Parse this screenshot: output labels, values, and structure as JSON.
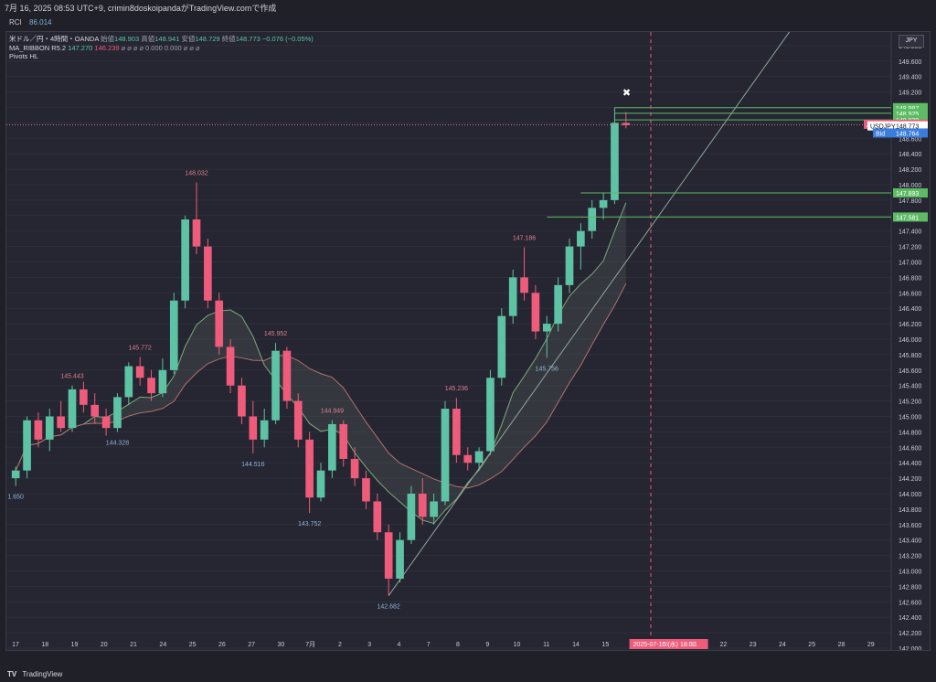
{
  "header": {
    "timestamp": "7月 16, 2025 08:53 UTC+9",
    "author": "crimin8doskoipandaがTradingView.comで作成"
  },
  "indicator_top": {
    "name": "RCI",
    "value": "86.014"
  },
  "legend": {
    "symbol": "米ドル／円・4時間・OANDA",
    "open_label": "始値",
    "open": "148.903",
    "high_label": "高値",
    "high": "148.941",
    "low_label": "安値",
    "low": "148.729",
    "close_label": "終値",
    "close": "148.773",
    "change": "−0.076 (−0.05%)",
    "ribbon_name": "MA_RIBBON R5.2",
    "ribbon_v1": "147.270",
    "ribbon_v2": "146.239",
    "ribbon_rest": "⌀ ⌀ ⌀ ⌀ 0.000 0.000 ⌀ ⌀ ⌀",
    "pivots": "Pivots HL"
  },
  "currency_button": "JPY",
  "footer": {
    "logo": "TV",
    "brand": "TradingView"
  },
  "colors": {
    "up": "#5ec3a4",
    "down": "#ef5b7a",
    "hline": "#5dbb63",
    "ask": "#ef5b7a",
    "bid": "#3b7ddd"
  },
  "chart_data": {
    "type": "candlestick",
    "symbol": "USDJPY",
    "ylim": [
      142.0,
      150.0
    ],
    "y_ticks": [
      "142.000",
      "142.200",
      "142.400",
      "142.600",
      "142.800",
      "143.000",
      "143.200",
      "143.400",
      "143.600",
      "143.800",
      "144.000",
      "144.200",
      "144.400",
      "144.600",
      "144.800",
      "145.000",
      "145.200",
      "145.400",
      "145.600",
      "145.800",
      "146.000",
      "146.200",
      "146.400",
      "146.600",
      "146.800",
      "147.000",
      "147.200",
      "147.400",
      "147.600",
      "147.800",
      "148.000",
      "148.200",
      "148.400",
      "148.600",
      "148.800",
      "149.000",
      "149.200",
      "149.400",
      "149.600",
      "149.800"
    ],
    "x_ticks": [
      "17",
      "18",
      "19",
      "20",
      "21",
      "24",
      "25",
      "26",
      "27",
      "30",
      "7月",
      "2",
      "3",
      "4",
      "7",
      "8",
      "9",
      "10",
      "11",
      "14",
      "15",
      "2025-07-16 (水) 18:00",
      "18",
      "21",
      "22",
      "23",
      "24",
      "25",
      "28",
      "29"
    ],
    "candles": [
      [
        144.2,
        144.35,
        144.1,
        144.3
      ],
      [
        144.3,
        145.0,
        144.2,
        144.95
      ],
      [
        144.95,
        145.05,
        144.6,
        144.7
      ],
      [
        144.7,
        145.1,
        144.55,
        145.0
      ],
      [
        145.0,
        145.2,
        144.8,
        144.85
      ],
      [
        144.85,
        145.4,
        144.8,
        145.35
      ],
      [
        145.35,
        145.45,
        145.05,
        145.15
      ],
      [
        145.15,
        145.3,
        144.9,
        145.0
      ],
      [
        145.0,
        145.1,
        144.75,
        144.85
      ],
      [
        144.85,
        145.3,
        144.8,
        145.25
      ],
      [
        145.25,
        145.7,
        145.15,
        145.65
      ],
      [
        145.65,
        145.77,
        145.4,
        145.5
      ],
      [
        145.5,
        145.6,
        145.2,
        145.3
      ],
      [
        145.3,
        145.75,
        145.25,
        145.6
      ],
      [
        145.6,
        146.6,
        145.55,
        146.5
      ],
      [
        146.5,
        147.6,
        146.4,
        147.55
      ],
      [
        147.55,
        148.03,
        147.1,
        147.2
      ],
      [
        147.2,
        147.3,
        146.4,
        146.5
      ],
      [
        146.5,
        146.6,
        145.8,
        145.9
      ],
      [
        145.9,
        146.0,
        145.3,
        145.4
      ],
      [
        145.4,
        145.5,
        144.9,
        145.0
      ],
      [
        145.0,
        145.2,
        144.52,
        144.7
      ],
      [
        144.7,
        145.1,
        144.6,
        144.95
      ],
      [
        144.95,
        145.95,
        144.9,
        145.85
      ],
      [
        145.85,
        145.9,
        145.1,
        145.2
      ],
      [
        145.2,
        145.3,
        144.6,
        144.7
      ],
      [
        144.7,
        144.8,
        143.75,
        143.95
      ],
      [
        143.95,
        144.4,
        143.9,
        144.3
      ],
      [
        144.3,
        144.95,
        144.2,
        144.9
      ],
      [
        144.9,
        144.95,
        144.35,
        144.45
      ],
      [
        144.45,
        144.6,
        144.1,
        144.2
      ],
      [
        144.2,
        144.3,
        143.8,
        143.9
      ],
      [
        143.9,
        144.0,
        143.4,
        143.5
      ],
      [
        143.5,
        143.6,
        142.68,
        142.9
      ],
      [
        142.9,
        143.5,
        142.85,
        143.4
      ],
      [
        143.4,
        144.1,
        143.35,
        144.0
      ],
      [
        144.0,
        144.2,
        143.6,
        143.7
      ],
      [
        143.7,
        144.0,
        143.6,
        143.9
      ],
      [
        143.9,
        145.2,
        143.85,
        145.1
      ],
      [
        145.1,
        145.24,
        144.4,
        144.5
      ],
      [
        144.5,
        144.6,
        144.3,
        144.4
      ],
      [
        144.4,
        144.6,
        144.3,
        144.55
      ],
      [
        144.55,
        145.6,
        144.5,
        145.5
      ],
      [
        145.5,
        146.4,
        145.4,
        146.3
      ],
      [
        146.3,
        146.9,
        146.2,
        146.8
      ],
      [
        146.8,
        147.19,
        146.5,
        146.6
      ],
      [
        146.6,
        146.7,
        146.0,
        146.1
      ],
      [
        146.1,
        146.3,
        145.76,
        146.2
      ],
      [
        146.2,
        146.8,
        146.1,
        146.7
      ],
      [
        146.7,
        147.3,
        146.6,
        147.2
      ],
      [
        147.2,
        147.5,
        146.9,
        147.4
      ],
      [
        147.4,
        147.8,
        147.3,
        147.7
      ],
      [
        147.7,
        147.9,
        147.55,
        147.8
      ],
      [
        147.8,
        149.0,
        147.75,
        148.8
      ],
      [
        148.8,
        148.94,
        148.73,
        148.77
      ]
    ],
    "annotations": [
      "148.032",
      "145.952",
      "145.772",
      "145.443",
      "144.949",
      "145.236",
      "147.186",
      "144.328",
      "144.516",
      "143.752",
      "142.682",
      "145.756",
      "1.650"
    ],
    "price_levels": [
      "148.997",
      "148.925",
      "148.839",
      "147.893",
      "147.581"
    ],
    "ask": {
      "label": "Ask",
      "value": "148.782"
    },
    "last": {
      "label": "USDJPY",
      "value": "148.773",
      "countdown": "01:06:51"
    },
    "bid": {
      "label": "Bid",
      "value": "148.764"
    }
  }
}
